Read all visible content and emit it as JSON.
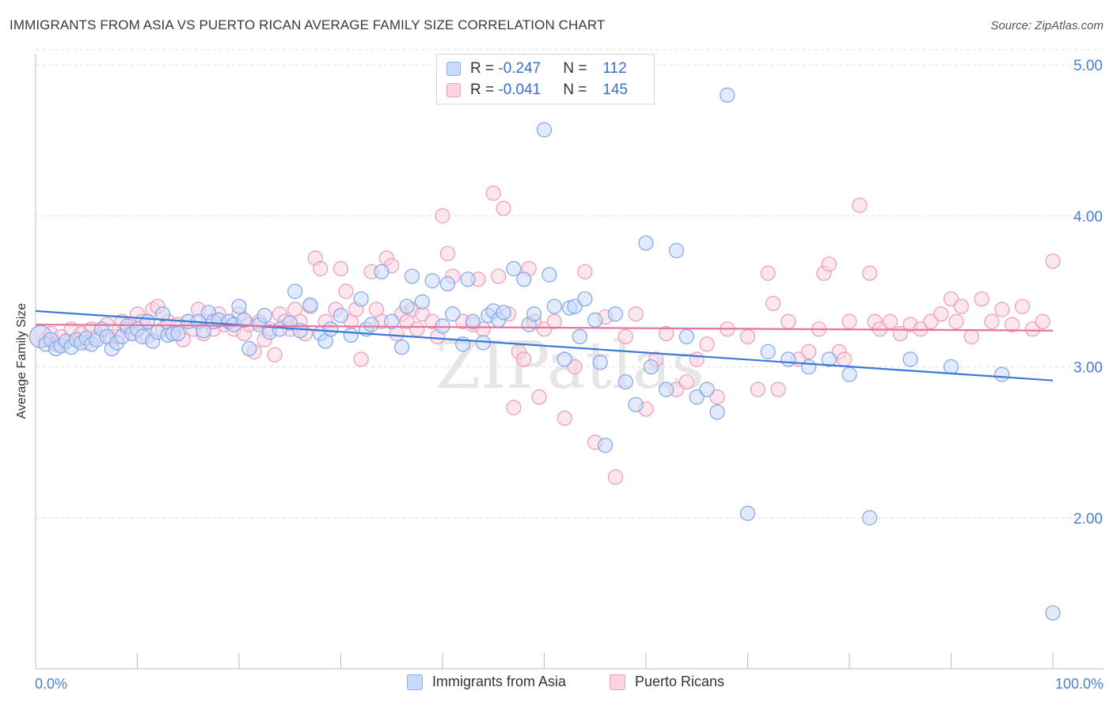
{
  "title": "IMMIGRANTS FROM ASIA VS PUERTO RICAN AVERAGE FAMILY SIZE CORRELATION CHART",
  "source": "Source: ZipAtlas.com",
  "watermark": "ZIPatlas",
  "legend_stats": [
    {
      "r_label": "R = ",
      "r_value": "-0.247",
      "n_label": "N = ",
      "n_value": "112",
      "color": "#8ab0ee",
      "fill": "#c9dbfb"
    },
    {
      "r_label": "R = ",
      "r_value": "-0.041",
      "n_label": "N = ",
      "n_value": "145",
      "color": "#f0a0bc",
      "fill": "#fbd3e1"
    }
  ],
  "colors": {
    "blue": "#3b78d8",
    "blue_fill": "#c9dbfb",
    "pink": "#e8739a",
    "pink_fill": "#fbd3e1",
    "tick_text": "#4a7fd4",
    "grid": "#dcdcdc"
  },
  "chart_data": {
    "type": "scatter",
    "title": "IMMIGRANTS FROM ASIA VS PUERTO RICAN AVERAGE FAMILY SIZE CORRELATION CHART",
    "xlabel": "",
    "ylabel": "Average Family Size",
    "xlim": [
      0,
      100
    ],
    "ylim": [
      1.0,
      5.0
    ],
    "x_tick_labels": [
      "0.0%",
      "100.0%"
    ],
    "y_ticks": [
      2.0,
      3.0,
      4.0,
      5.0
    ],
    "y_tick_labels": [
      "2.00",
      "3.00",
      "4.00",
      "5.00"
    ],
    "grid": "horizontal dashed",
    "legend_position": "bottom",
    "series": [
      {
        "name": "Immigrants from Asia",
        "r": -0.247,
        "n": 112,
        "trend": {
          "x": [
            0,
            100
          ],
          "y": [
            3.37,
            2.91
          ]
        },
        "points": [
          [
            0.5,
            3.2
          ],
          [
            1,
            3.15
          ],
          [
            1.5,
            3.18
          ],
          [
            2,
            3.12
          ],
          [
            2.5,
            3.14
          ],
          [
            3,
            3.17
          ],
          [
            3.5,
            3.13
          ],
          [
            4,
            3.18
          ],
          [
            4.5,
            3.16
          ],
          [
            5,
            3.19
          ],
          [
            5.5,
            3.15
          ],
          [
            6,
            3.18
          ],
          [
            6.5,
            3.25
          ],
          [
            7,
            3.2
          ],
          [
            7.5,
            3.12
          ],
          [
            8,
            3.16
          ],
          [
            8.5,
            3.2
          ],
          [
            9,
            3.27
          ],
          [
            9.5,
            3.22
          ],
          [
            10,
            3.25
          ],
          [
            10.5,
            3.2
          ],
          [
            11,
            3.3
          ],
          [
            11.5,
            3.17
          ],
          [
            12,
            3.23
          ],
          [
            12.5,
            3.35
          ],
          [
            13,
            3.21
          ],
          [
            13.5,
            3.22
          ],
          [
            14,
            3.22
          ],
          [
            15,
            3.3
          ],
          [
            16,
            3.3
          ],
          [
            16.5,
            3.24
          ],
          [
            17,
            3.36
          ],
          [
            17.5,
            3.3
          ],
          [
            18,
            3.31
          ],
          [
            19,
            3.3
          ],
          [
            19.5,
            3.28
          ],
          [
            20,
            3.4
          ],
          [
            20.5,
            3.31
          ],
          [
            21,
            3.12
          ],
          [
            22,
            3.28
          ],
          [
            22.5,
            3.34
          ],
          [
            23,
            3.23
          ],
          [
            24,
            3.25
          ],
          [
            25,
            3.29
          ],
          [
            25.5,
            3.5
          ],
          [
            26,
            3.24
          ],
          [
            27,
            3.41
          ],
          [
            28,
            3.22
          ],
          [
            28.5,
            3.17
          ],
          [
            29,
            3.25
          ],
          [
            30,
            3.34
          ],
          [
            31,
            3.21
          ],
          [
            32,
            3.45
          ],
          [
            32.5,
            3.25
          ],
          [
            33,
            3.28
          ],
          [
            34,
            3.63
          ],
          [
            35,
            3.3
          ],
          [
            36,
            3.13
          ],
          [
            36.5,
            3.4
          ],
          [
            37,
            3.6
          ],
          [
            38,
            3.43
          ],
          [
            39,
            3.57
          ],
          [
            40,
            3.27
          ],
          [
            40.5,
            3.55
          ],
          [
            41,
            3.35
          ],
          [
            42,
            3.15
          ],
          [
            42.5,
            3.58
          ],
          [
            43,
            3.3
          ],
          [
            44,
            3.16
          ],
          [
            44.5,
            3.34
          ],
          [
            45,
            3.37
          ],
          [
            45.5,
            3.31
          ],
          [
            46,
            3.36
          ],
          [
            47,
            3.65
          ],
          [
            48,
            3.58
          ],
          [
            48.5,
            3.28
          ],
          [
            49,
            3.35
          ],
          [
            50,
            4.57
          ],
          [
            50.5,
            3.61
          ],
          [
            51,
            3.4
          ],
          [
            52,
            3.05
          ],
          [
            52.5,
            3.39
          ],
          [
            53,
            3.4
          ],
          [
            53.5,
            3.2
          ],
          [
            54,
            3.45
          ],
          [
            55,
            3.31
          ],
          [
            55.5,
            3.03
          ],
          [
            56,
            2.48
          ],
          [
            57,
            3.35
          ],
          [
            58,
            2.9
          ],
          [
            59,
            2.75
          ],
          [
            60,
            3.82
          ],
          [
            60.5,
            3.0
          ],
          [
            62,
            2.85
          ],
          [
            63,
            3.77
          ],
          [
            64,
            3.2
          ],
          [
            65,
            2.8
          ],
          [
            66,
            2.85
          ],
          [
            67,
            2.7
          ],
          [
            68,
            4.8
          ],
          [
            70,
            2.03
          ],
          [
            72,
            3.1
          ],
          [
            74,
            3.05
          ],
          [
            76,
            3.0
          ],
          [
            78,
            3.05
          ],
          [
            80,
            2.95
          ],
          [
            82,
            2.0
          ],
          [
            86,
            3.05
          ],
          [
            90,
            3.0
          ],
          [
            95,
            2.95
          ],
          [
            100,
            1.37
          ]
        ]
      },
      {
        "name": "Puerto Ricans",
        "r": -0.041,
        "n": 145,
        "trend": {
          "x": [
            0,
            100
          ],
          "y": [
            3.28,
            3.24
          ]
        },
        "points": [
          [
            0.5,
            3.2
          ],
          [
            1,
            3.18
          ],
          [
            1.5,
            3.22
          ],
          [
            2,
            3.15
          ],
          [
            2.5,
            3.2
          ],
          [
            3,
            3.17
          ],
          [
            3.5,
            3.25
          ],
          [
            4,
            3.18
          ],
          [
            4.5,
            3.22
          ],
          [
            5,
            3.16
          ],
          [
            5.5,
            3.25
          ],
          [
            6,
            3.2
          ],
          [
            7,
            3.28
          ],
          [
            7.5,
            3.18
          ],
          [
            8,
            3.2
          ],
          [
            8.5,
            3.3
          ],
          [
            9,
            3.25
          ],
          [
            9.5,
            3.22
          ],
          [
            10,
            3.35
          ],
          [
            10.5,
            3.3
          ],
          [
            11,
            3.2
          ],
          [
            11.5,
            3.38
          ],
          [
            12,
            3.4
          ],
          [
            12.5,
            3.25
          ],
          [
            13,
            3.3
          ],
          [
            13.5,
            3.22
          ],
          [
            14,
            3.28
          ],
          [
            14.5,
            3.18
          ],
          [
            15,
            3.3
          ],
          [
            15.5,
            3.25
          ],
          [
            16,
            3.38
          ],
          [
            16.5,
            3.22
          ],
          [
            17,
            3.3
          ],
          [
            17.5,
            3.25
          ],
          [
            18,
            3.35
          ],
          [
            18.5,
            3.28
          ],
          [
            19,
            3.3
          ],
          [
            19.5,
            3.25
          ],
          [
            20,
            3.35
          ],
          [
            20.5,
            3.22
          ],
          [
            21,
            3.28
          ],
          [
            21.5,
            3.1
          ],
          [
            22,
            3.3
          ],
          [
            22.5,
            3.18
          ],
          [
            23,
            3.25
          ],
          [
            23.5,
            3.08
          ],
          [
            24,
            3.35
          ],
          [
            24.5,
            3.3
          ],
          [
            25,
            3.25
          ],
          [
            25.5,
            3.38
          ],
          [
            26,
            3.3
          ],
          [
            26.5,
            3.22
          ],
          [
            27,
            3.4
          ],
          [
            27.5,
            3.72
          ],
          [
            28,
            3.65
          ],
          [
            28.5,
            3.3
          ],
          [
            29,
            3.25
          ],
          [
            29.5,
            3.38
          ],
          [
            30,
            3.65
          ],
          [
            30.5,
            3.5
          ],
          [
            31,
            3.3
          ],
          [
            31.5,
            3.38
          ],
          [
            32,
            3.05
          ],
          [
            33,
            3.63
          ],
          [
            33.5,
            3.38
          ],
          [
            34,
            3.3
          ],
          [
            34.5,
            3.72
          ],
          [
            35,
            3.67
          ],
          [
            35.5,
            3.22
          ],
          [
            36,
            3.35
          ],
          [
            36.5,
            3.3
          ],
          [
            37,
            3.38
          ],
          [
            37.5,
            3.25
          ],
          [
            38,
            3.35
          ],
          [
            39,
            3.3
          ],
          [
            39.5,
            3.2
          ],
          [
            40,
            4.0
          ],
          [
            40.5,
            3.75
          ],
          [
            41,
            3.6
          ],
          [
            42,
            3.3
          ],
          [
            43,
            3.28
          ],
          [
            43.5,
            3.58
          ],
          [
            44,
            3.25
          ],
          [
            45,
            4.15
          ],
          [
            45.5,
            3.6
          ],
          [
            46,
            4.05
          ],
          [
            46.5,
            3.35
          ],
          [
            47,
            2.73
          ],
          [
            47.5,
            3.1
          ],
          [
            48,
            3.05
          ],
          [
            48.5,
            3.65
          ],
          [
            49,
            3.3
          ],
          [
            49.5,
            2.8
          ],
          [
            50,
            3.25
          ],
          [
            51,
            3.3
          ],
          [
            52,
            2.66
          ],
          [
            53,
            3.0
          ],
          [
            54,
            3.63
          ],
          [
            55,
            2.5
          ],
          [
            56,
            3.33
          ],
          [
            57,
            2.27
          ],
          [
            58,
            3.2
          ],
          [
            59,
            3.35
          ],
          [
            60,
            2.72
          ],
          [
            61,
            3.05
          ],
          [
            62,
            3.22
          ],
          [
            63,
            2.85
          ],
          [
            64,
            2.9
          ],
          [
            65,
            3.05
          ],
          [
            66,
            3.15
          ],
          [
            67,
            2.8
          ],
          [
            68,
            3.25
          ],
          [
            70,
            3.2
          ],
          [
            71,
            2.85
          ],
          [
            72,
            3.62
          ],
          [
            72.5,
            3.42
          ],
          [
            73,
            2.85
          ],
          [
            74,
            3.3
          ],
          [
            75,
            3.05
          ],
          [
            76,
            3.1
          ],
          [
            77,
            3.25
          ],
          [
            77.5,
            3.62
          ],
          [
            78,
            3.68
          ],
          [
            79,
            3.1
          ],
          [
            79.5,
            3.05
          ],
          [
            80,
            3.3
          ],
          [
            81,
            4.07
          ],
          [
            82,
            3.62
          ],
          [
            82.5,
            3.3
          ],
          [
            83,
            3.25
          ],
          [
            84,
            3.3
          ],
          [
            85,
            3.22
          ],
          [
            86,
            3.28
          ],
          [
            87,
            3.25
          ],
          [
            88,
            3.3
          ],
          [
            89,
            3.35
          ],
          [
            90,
            3.45
          ],
          [
            90.5,
            3.3
          ],
          [
            91,
            3.4
          ],
          [
            92,
            3.2
          ],
          [
            93,
            3.45
          ],
          [
            94,
            3.3
          ],
          [
            95,
            3.38
          ],
          [
            96,
            3.28
          ],
          [
            97,
            3.4
          ],
          [
            98,
            3.25
          ],
          [
            99,
            3.3
          ],
          [
            100,
            3.7
          ]
        ]
      }
    ]
  }
}
